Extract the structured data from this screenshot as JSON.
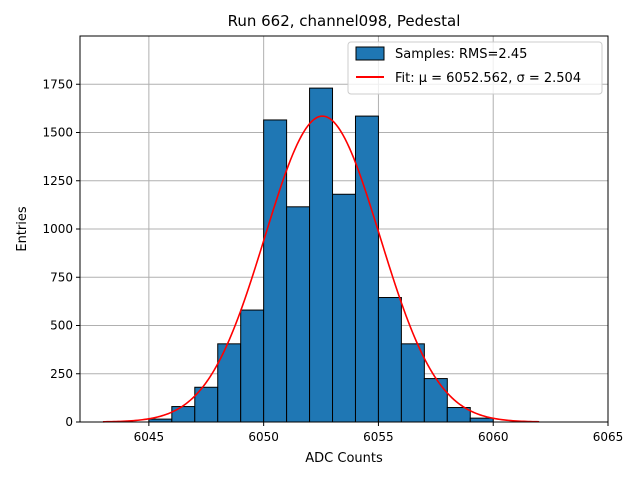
{
  "chart_data": {
    "type": "bar",
    "title": "Run 662, channel098, Pedestal",
    "xlabel": "ADC Counts",
    "ylabel": "Entries",
    "xlim": [
      6042,
      6065
    ],
    "ylim": [
      0,
      2000
    ],
    "xticks": [
      6045,
      6050,
      6055,
      6060,
      6065
    ],
    "yticks": [
      0,
      250,
      500,
      750,
      1000,
      1250,
      1500,
      1750
    ],
    "grid": true,
    "legend_position": "top-right",
    "bin_width": 1,
    "histogram": {
      "name": "Samples: RMS=2.45",
      "color": "#1f77b4",
      "edgecolor": "#000000",
      "bin_starts": [
        6045,
        6046,
        6047,
        6048,
        6049,
        6050,
        6051,
        6052,
        6053,
        6054,
        6055,
        6056,
        6057,
        6058,
        6059
      ],
      "values": [
        15,
        80,
        180,
        405,
        580,
        1565,
        1115,
        1730,
        1180,
        1585,
        645,
        405,
        225,
        75,
        20
      ]
    },
    "fit": {
      "name": "Fit: μ = 6052.562, σ = 2.504",
      "color": "#ff0000",
      "mu": 6052.562,
      "sigma": 2.504,
      "amplitude": 1585,
      "x_range": [
        6043,
        6062
      ]
    }
  }
}
